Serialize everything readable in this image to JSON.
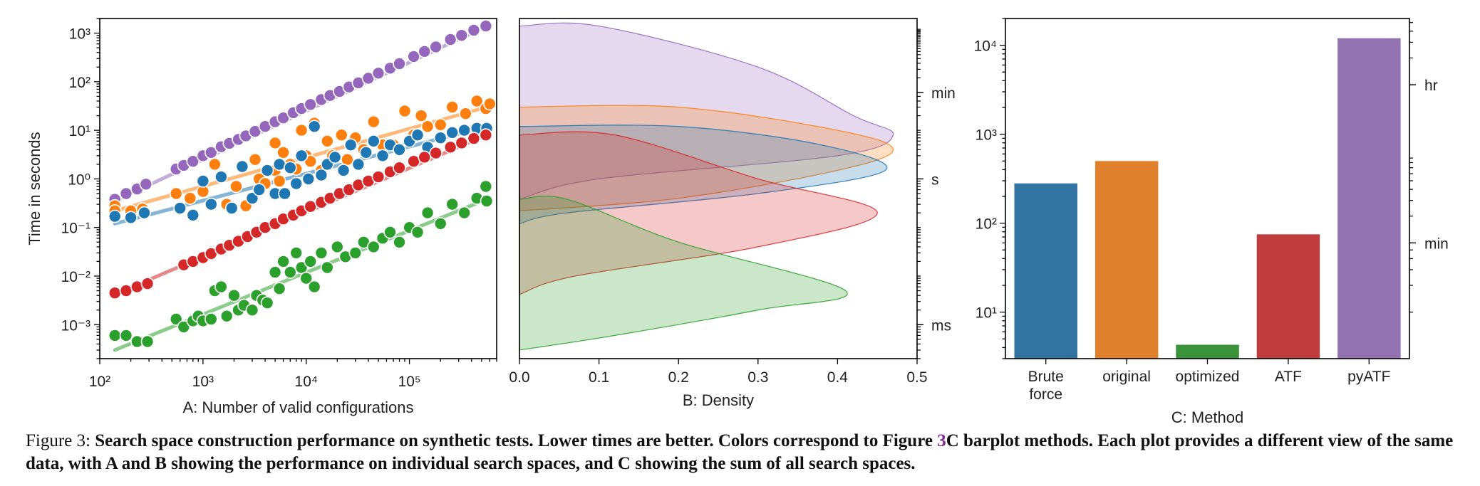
{
  "chart_data": [
    {
      "type": "scatter",
      "panel": "A",
      "xlabel": "A: Number of valid configurations",
      "ylabel": "Time in seconds",
      "xscale": "log",
      "yscale": "log",
      "xlim": [
        100,
        700000
      ],
      "ylim": [
        0.0002,
        2000
      ],
      "xticks": [
        {
          "label": "10²",
          "value": 100
        },
        {
          "label": "10³",
          "value": 1000
        },
        {
          "label": "10⁴",
          "value": 10000
        },
        {
          "label": "10⁵",
          "value": 100000
        }
      ],
      "yticks": [
        {
          "label": "10⁻³",
          "value": 0.001
        },
        {
          "label": "10⁻²",
          "value": 0.01
        },
        {
          "label": "10⁻¹",
          "value": 0.1
        },
        {
          "label": "10⁰",
          "value": 1
        },
        {
          "label": "10¹",
          "value": 10
        },
        {
          "label": "10²",
          "value": 100
        },
        {
          "label": "10³",
          "value": 1000
        }
      ],
      "series": [
        {
          "color": "#9467bd",
          "trend": [
            [
              140,
              0.35
            ],
            [
              560000,
              1400
            ]
          ],
          "x": [
            140,
            180,
            230,
            280,
            550,
            650,
            800,
            1000,
            1200,
            1500,
            1800,
            2200,
            2600,
            3200,
            4000,
            5000,
            6000,
            7500,
            9000,
            11000,
            14000,
            17000,
            21000,
            26000,
            32000,
            40000,
            50000,
            65000,
            80000,
            110000,
            140000,
            180000,
            250000,
            320000,
            420000,
            550000
          ],
          "y": [
            0.38,
            0.5,
            0.62,
            0.78,
            1.6,
            1.9,
            2.3,
            3.0,
            3.5,
            4.6,
            5.4,
            6.5,
            7.7,
            9.5,
            12,
            15,
            18,
            23,
            28,
            34,
            43,
            52,
            63,
            78,
            95,
            118,
            150,
            190,
            235,
            330,
            420,
            520,
            740,
            900,
            1150,
            1400
          ]
        },
        {
          "color": "#ff7f0e",
          "trend": [
            [
              140,
              0.22
            ],
            [
              560000,
              30
            ]
          ],
          "x": [
            140,
            140,
            200,
            260,
            550,
            750,
            1000,
            1300,
            1700,
            2100,
            2600,
            3200,
            3500,
            4000,
            5000,
            5000,
            5500,
            6000,
            7000,
            8000,
            9000,
            10000,
            11000,
            12000,
            14000,
            16000,
            18000,
            22000,
            25000,
            30000,
            36000,
            45000,
            55000,
            70000,
            90000,
            110000,
            130000,
            150000,
            200000,
            260000,
            350000,
            450000,
            550000,
            600000
          ],
          "y": [
            0.28,
            0.22,
            0.22,
            0.24,
            0.5,
            0.4,
            0.55,
            2.0,
            0.3,
            0.7,
            0.28,
            2.5,
            1.0,
            0.8,
            1.5,
            5.5,
            0.9,
            3.5,
            2.0,
            1.6,
            10,
            3.0,
            2.3,
            14,
            1.5,
            6.0,
            3.0,
            8.0,
            2.5,
            7.0,
            4.0,
            15,
            5.0,
            5.0,
            25,
            8.0,
            20,
            12,
            13,
            30,
            22,
            40,
            28,
            35
          ]
        },
        {
          "color": "#1f77b4",
          "trend": [
            [
              140,
              0.12
            ],
            [
              560000,
              12
            ]
          ],
          "x": [
            140,
            200,
            270,
            600,
            800,
            1000,
            1200,
            1500,
            1900,
            2400,
            3000,
            3500,
            4200,
            5000,
            5500,
            6200,
            7000,
            8000,
            9000,
            10500,
            12000,
            14000,
            16000,
            19000,
            23000,
            27000,
            32000,
            38000,
            45000,
            55000,
            65000,
            80000,
            100000,
            120000,
            150000,
            200000,
            260000,
            340000,
            450000,
            560000
          ],
          "y": [
            0.17,
            0.16,
            0.2,
            0.25,
            0.18,
            0.9,
            0.3,
            1.1,
            0.25,
            1.8,
            0.4,
            0.6,
            1.5,
            0.5,
            2.0,
            0.5,
            1.7,
            0.8,
            3.0,
            1.0,
            12,
            1.2,
            2.0,
            2.8,
            1.5,
            5.0,
            2.0,
            3.5,
            6.0,
            3.0,
            5.0,
            4.0,
            6.0,
            8.0,
            4.5,
            7.0,
            9.0,
            10,
            11,
            11
          ]
        },
        {
          "color": "#d62728",
          "trend": [
            [
              140,
              0.0042
            ],
            [
              560000,
              8
            ]
          ],
          "x": [
            140,
            180,
            230,
            290,
            650,
            800,
            1000,
            1200,
            1500,
            1800,
            2200,
            2700,
            3300,
            4000,
            5000,
            6000,
            7500,
            9000,
            11000,
            14000,
            17000,
            21000,
            26000,
            32000,
            40000,
            50000,
            65000,
            80000,
            110000,
            140000,
            180000,
            250000,
            320000,
            420000,
            550000
          ],
          "y": [
            0.0045,
            0.005,
            0.006,
            0.007,
            0.017,
            0.02,
            0.024,
            0.029,
            0.036,
            0.043,
            0.052,
            0.065,
            0.08,
            0.1,
            0.12,
            0.15,
            0.18,
            0.22,
            0.27,
            0.33,
            0.4,
            0.5,
            0.6,
            0.75,
            0.9,
            1.1,
            1.4,
            1.7,
            2.3,
            2.8,
            3.4,
            4.5,
            5.5,
            6.8,
            8.0
          ]
        },
        {
          "color": "#2ca02c",
          "trend": [
            [
              140,
              0.0003
            ],
            [
              560000,
              0.38
            ]
          ],
          "x": [
            140,
            180,
            230,
            290,
            550,
            650,
            800,
            900,
            1000,
            1200,
            1300,
            1500,
            1700,
            2000,
            2200,
            2500,
            3000,
            3300,
            3800,
            4200,
            5000,
            5500,
            6000,
            7000,
            8000,
            9000,
            10000,
            11000,
            12000,
            14000,
            16000,
            20000,
            24000,
            30000,
            36000,
            45000,
            55000,
            65000,
            80000,
            100000,
            120000,
            150000,
            200000,
            260000,
            340000,
            450000,
            550000,
            560000
          ],
          "y": [
            0.0006,
            0.0006,
            0.00045,
            0.00045,
            0.0013,
            0.0009,
            0.0012,
            0.0015,
            0.0012,
            0.0013,
            0.005,
            0.006,
            0.0015,
            0.004,
            0.002,
            0.0025,
            0.002,
            0.004,
            0.0032,
            0.0028,
            0.012,
            0.0055,
            0.02,
            0.012,
            0.03,
            0.015,
            0.009,
            0.02,
            0.006,
            0.03,
            0.015,
            0.04,
            0.025,
            0.03,
            0.05,
            0.04,
            0.06,
            0.08,
            0.05,
            0.1,
            0.08,
            0.2,
            0.12,
            0.3,
            0.2,
            0.4,
            0.7,
            0.35
          ]
        }
      ]
    },
    {
      "type": "area",
      "panel": "B",
      "orientation": "horizontal-density",
      "xlabel": "B: Density",
      "xlim": [
        0,
        0.5
      ],
      "xticks": [
        "0.0",
        "0.1",
        "0.2",
        "0.3",
        "0.4",
        "0.5"
      ],
      "ylim": [
        0.0002,
        2000
      ],
      "yscale": "log",
      "right_ticks": [
        {
          "label": "min",
          "value": 60
        },
        {
          "label": "s",
          "value": 1
        },
        {
          "label": "ms",
          "value": 0.001
        }
      ],
      "series": [
        {
          "color": "#9467bd",
          "profile": [
            [
              1400,
              0
            ],
            [
              1400,
              0.1
            ],
            [
              200,
              0.3
            ],
            [
              20,
              0.42
            ],
            [
              8,
              0.47
            ],
            [
              3,
              0.4
            ],
            [
              1,
              0.1
            ],
            [
              0.38,
              0
            ]
          ]
        },
        {
          "color": "#ff7f0e",
          "profile": [
            [
              30,
              0
            ],
            [
              30,
              0.2
            ],
            [
              10,
              0.4
            ],
            [
              4,
              0.47
            ],
            [
              1.5,
              0.4
            ],
            [
              0.4,
              0.2
            ],
            [
              0.22,
              0
            ]
          ]
        },
        {
          "color": "#1f77b4",
          "profile": [
            [
              12,
              0
            ],
            [
              12,
              0.2
            ],
            [
              5,
              0.38
            ],
            [
              1.5,
              0.46
            ],
            [
              0.5,
              0.3
            ],
            [
              0.2,
              0.06
            ],
            [
              0.12,
              0
            ]
          ]
        },
        {
          "color": "#d62728",
          "profile": [
            [
              8,
              0
            ],
            [
              8,
              0.12
            ],
            [
              1,
              0.3
            ],
            [
              0.2,
              0.45
            ],
            [
              0.04,
              0.3
            ],
            [
              0.01,
              0.07
            ],
            [
              0.0042,
              0
            ]
          ]
        },
        {
          "color": "#2ca02c",
          "profile": [
            [
              0.38,
              0
            ],
            [
              0.38,
              0.06
            ],
            [
              0.05,
              0.2
            ],
            [
              0.005,
              0.41
            ],
            [
              0.002,
              0.3
            ],
            [
              0.0006,
              0.12
            ],
            [
              0.0003,
              0
            ]
          ]
        }
      ]
    },
    {
      "type": "bar",
      "panel": "C",
      "xlabel": "C: Method",
      "yscale": "log",
      "ylim": [
        3,
        20000
      ],
      "yticks": [
        {
          "label": "10¹",
          "value": 10
        },
        {
          "label": "10²",
          "value": 100
        },
        {
          "label": "10³",
          "value": 1000
        },
        {
          "label": "10⁴",
          "value": 10000
        }
      ],
      "right_ticks": [
        {
          "label": "hr",
          "value": 3600
        },
        {
          "label": "min",
          "value": 60
        }
      ],
      "categories": [
        [
          "Brute",
          "force"
        ],
        [
          "original"
        ],
        [
          "optimized"
        ],
        [
          "ATF"
        ],
        [
          "pyATF"
        ]
      ],
      "values": [
        280,
        500,
        4.3,
        75,
        12000
      ],
      "colors": [
        "#3274a1",
        "#e1812c",
        "#3a923a",
        "#c03d3e",
        "#9372b2"
      ]
    }
  ],
  "caption": {
    "label": "Figure 3: ",
    "text1": "Search space construction performance on synthetic tests. Lower times are better. Colors correspond to Figure ",
    "ref": "3",
    "text2": "C barplot methods. Each plot provides a different view of the same data, with A and B showing the performance on individual search spaces, and C showing the sum of all search spaces."
  }
}
